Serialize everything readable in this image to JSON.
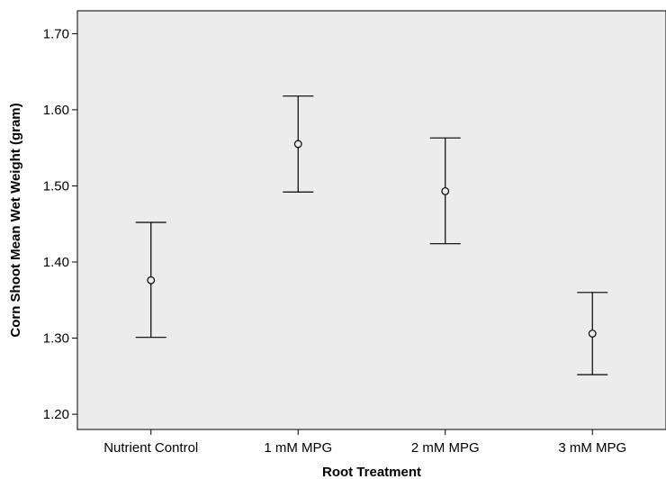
{
  "chart_data": {
    "type": "errorbar",
    "title": "",
    "xlabel": "Root Treatment",
    "ylabel": "Corn Shoot Mean Wet Weight (gram)",
    "categories": [
      "Nutrient Control",
      "1 mM MPG",
      "2 mM MPG",
      "3 mM MPG"
    ],
    "series": [
      {
        "means": [
          1.376,
          1.555,
          1.493,
          1.306
        ],
        "lower": [
          1.301,
          1.492,
          1.424,
          1.252
        ],
        "upper": [
          1.452,
          1.618,
          1.563,
          1.36
        ]
      }
    ],
    "ylim": [
      1.18,
      1.73
    ],
    "yticks": [
      1.2,
      1.3,
      1.4,
      1.5,
      1.6,
      1.7
    ],
    "ytick_labels": [
      "1.20",
      "1.30",
      "1.40",
      "1.50",
      "1.60",
      "1.70"
    ],
    "grid": false,
    "legend": "none",
    "colors": {
      "plot_background": "#ececec",
      "mark": "#000000",
      "axis": "#000000"
    }
  }
}
